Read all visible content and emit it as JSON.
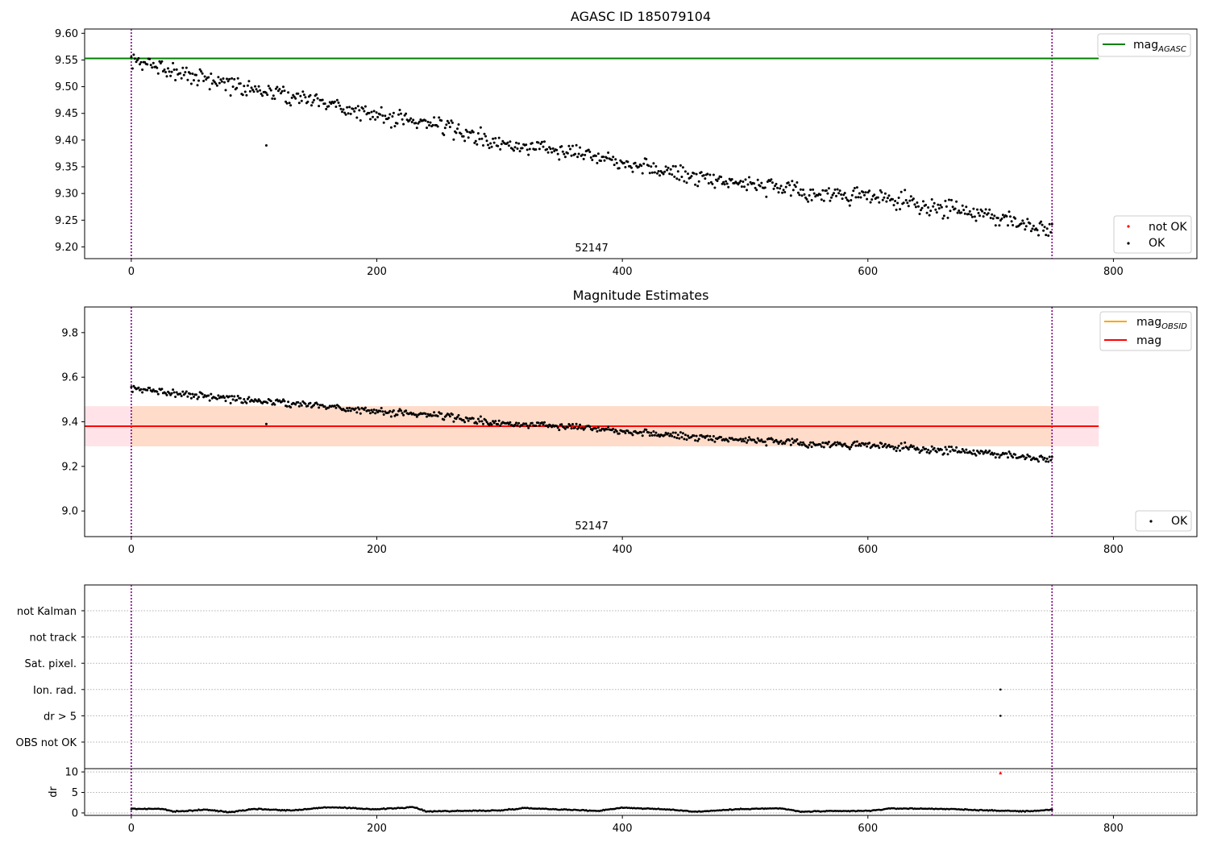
{
  "colors": {
    "ok_points": "#000000",
    "not_ok_points": "#ff0000",
    "mag_agasc_line": "#008000",
    "mag_line": "#ff0000",
    "mag_obsid_line": "#ffa500",
    "mag_band_fill": "#ffc0cb",
    "obs_band_fill": "#ffd8c0",
    "obs_boundary": "#800080",
    "grid_line": "#b0b0b0"
  },
  "chart_data": [
    {
      "type": "scatter",
      "title": "AGASC ID 185079104",
      "xlim": [
        -38,
        868
      ],
      "ylim": [
        9.178,
        9.608
      ],
      "xticks": [
        "0",
        "200",
        "400",
        "600",
        "800"
      ],
      "yticks": [
        "9.20",
        "9.25",
        "9.30",
        "9.35",
        "9.40",
        "9.45",
        "9.50",
        "9.55",
        "9.60"
      ],
      "hline": {
        "name": "mag_AGASC",
        "y": 9.553,
        "x_range": [
          -38,
          788
        ]
      },
      "obs_boundaries_x": [
        0,
        750
      ],
      "obs_label": {
        "text": "52147",
        "x": 375
      },
      "trend_knots": {
        "x": [
          0,
          20,
          60,
          100,
          150,
          200,
          250,
          300,
          350,
          400,
          450,
          500,
          550,
          600,
          650,
          700,
          750
        ],
        "y": [
          9.545,
          9.54,
          9.515,
          9.495,
          9.475,
          9.445,
          9.43,
          9.39,
          9.385,
          9.36,
          9.335,
          9.32,
          9.3,
          9.295,
          9.275,
          9.26,
          9.23
        ]
      },
      "n_points": 752,
      "outliers": [
        {
          "x": 110,
          "y": 9.39
        }
      ],
      "legends": [
        {
          "placement": "top-right",
          "entries": [
            {
              "label_main": "mag",
              "label_sub": "AGASC",
              "kind": "line",
              "color": "#008000"
            }
          ]
        },
        {
          "placement": "bottom-right",
          "entries": [
            {
              "label_main": "not OK",
              "kind": "point",
              "color": "#ff0000"
            },
            {
              "label_main": "OK",
              "kind": "point",
              "color": "#000000"
            }
          ]
        }
      ]
    },
    {
      "type": "scatter",
      "title": "Magnitude Estimates",
      "xlim": [
        -38,
        868
      ],
      "ylim": [
        8.885,
        9.915
      ],
      "xticks": [
        "0",
        "200",
        "400",
        "600",
        "800"
      ],
      "yticks": [
        "9.0",
        "9.2",
        "9.4",
        "9.6",
        "9.8"
      ],
      "hline": {
        "name": "mag",
        "y": 9.38,
        "x_range": [
          -38,
          788
        ]
      },
      "band": {
        "y_low": 9.29,
        "y_high": 9.47,
        "x_range": [
          -38,
          788
        ]
      },
      "obs_band": {
        "y_low": 9.29,
        "y_high": 9.47,
        "x_range": [
          0,
          750
        ]
      },
      "obs_boundaries_x": [
        0,
        750
      ],
      "obs_label": {
        "text": "52147",
        "x": 375
      },
      "trend_knots": {
        "x": [
          0,
          20,
          60,
          100,
          150,
          200,
          250,
          300,
          350,
          400,
          450,
          500,
          550,
          600,
          650,
          700,
          750
        ],
        "y": [
          9.545,
          9.54,
          9.515,
          9.495,
          9.475,
          9.445,
          9.43,
          9.39,
          9.385,
          9.36,
          9.335,
          9.32,
          9.3,
          9.295,
          9.275,
          9.26,
          9.23
        ]
      },
      "n_points": 752,
      "outliers": [
        {
          "x": 110,
          "y": 9.39
        }
      ],
      "legends": [
        {
          "placement": "top-right",
          "entries": [
            {
              "label_main": "mag",
              "label_sub": "OBSID",
              "kind": "line",
              "color": "#ffa500"
            },
            {
              "label_main": "mag",
              "kind": "line",
              "color": "#ff0000"
            }
          ]
        },
        {
          "placement": "bottom-right",
          "entries": [
            {
              "label_main": "OK",
              "kind": "point",
              "color": "#000000"
            }
          ]
        }
      ]
    },
    {
      "type": "scatter",
      "title": "",
      "xlim": [
        -38,
        868
      ],
      "categories": [
        "OBS not OK",
        "dr > 5",
        "Ion. rad.",
        "Sat. pixel.",
        "not track",
        "not Kalman"
      ],
      "flagged_points": [
        {
          "category": "Ion. rad.",
          "x": 708
        },
        {
          "category": "dr > 5",
          "x": 708
        }
      ],
      "obs_boundaries_x": [
        0,
        750
      ]
    },
    {
      "type": "scatter",
      "title": "",
      "ylabel": "dr",
      "xlim": [
        -38,
        868
      ],
      "ylim": [
        -0.6,
        10.8
      ],
      "xticks": [
        "0",
        "200",
        "400",
        "600",
        "800"
      ],
      "yticks": [
        "0",
        "5",
        "10"
      ],
      "n_points": 752,
      "dr_knots": {
        "x": [
          0,
          25,
          35,
          60,
          80,
          100,
          130,
          160,
          200,
          230,
          240,
          300,
          320,
          380,
          400,
          440,
          460,
          500,
          530,
          545,
          560,
          600,
          620,
          660,
          700,
          730,
          750
        ],
        "y": [
          1.0,
          1.0,
          0.3,
          0.8,
          0.2,
          1.0,
          0.6,
          1.4,
          0.9,
          1.4,
          0.4,
          0.6,
          1.2,
          0.5,
          1.3,
          0.8,
          0.3,
          1.0,
          1.1,
          0.3,
          0.4,
          0.5,
          1.1,
          1.0,
          0.6,
          0.4,
          0.8
        ]
      },
      "red_marker": {
        "x": 708,
        "y": 9.8
      },
      "obs_boundaries_x": [
        0,
        750
      ]
    }
  ]
}
